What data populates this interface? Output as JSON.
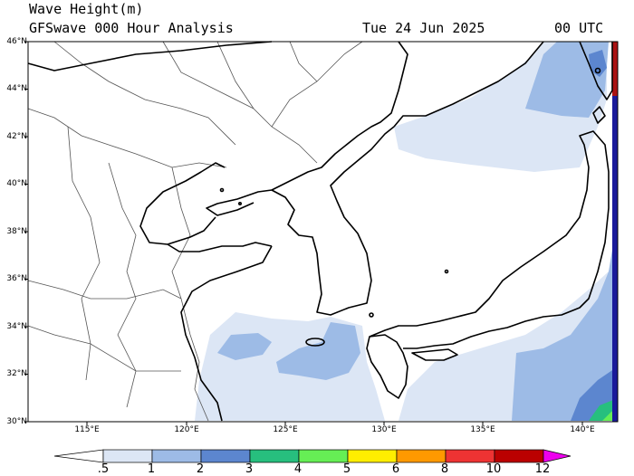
{
  "header": {
    "title": "Wave Height(m)",
    "subtitle": "GFSwave 000 Hour Analysis",
    "date": "Tue 24 Jun 2025",
    "time": "00 UTC"
  },
  "map": {
    "lat_labels": [
      "46°N",
      "44°N",
      "42°N",
      "40°N",
      "38°N",
      "36°N",
      "34°N",
      "32°N",
      "30°N"
    ],
    "lon_labels": [
      "115°E",
      "120°E",
      "125°E",
      "130°E",
      "135°E",
      "140°E"
    ],
    "colors": {
      "land": "#ffffff",
      "coast": "#000000",
      "border": "#555555",
      "wave_lt_1": "#dce6f5",
      "wave_1_2": "#9dbbe6",
      "wave_2_3": "#5c86cf"
    }
  },
  "colorbar": {
    "labels": [
      ".5",
      "1",
      "2",
      "3",
      "4",
      "5",
      "6",
      "8",
      "10",
      "12"
    ],
    "colors": [
      "#ffffff",
      "#dce6f5",
      "#9dbbe6",
      "#5c86cf",
      "#27bf7e",
      "#66ee55",
      "#ffee00",
      "#ff9900",
      "#ee3333",
      "#bb0000",
      "#ee00ee"
    ]
  }
}
